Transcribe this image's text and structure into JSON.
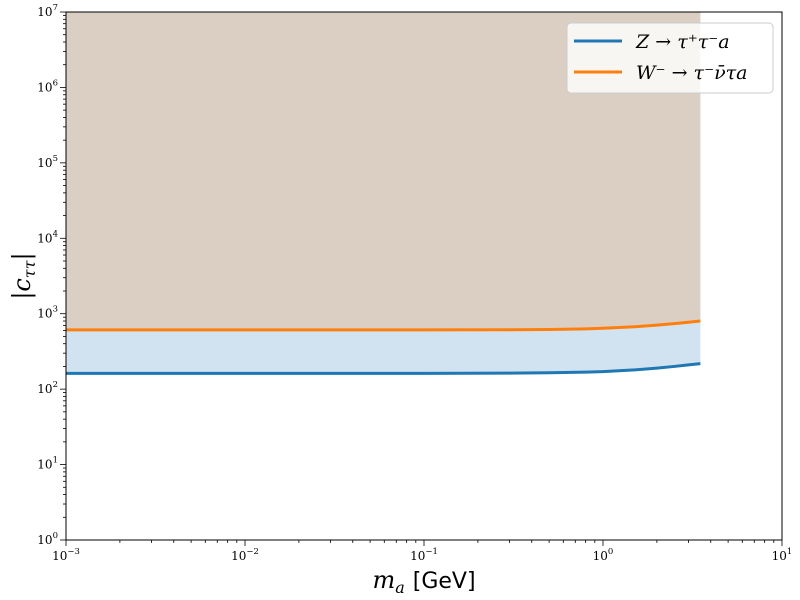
{
  "chart_data": {
    "type": "line",
    "xscale": "log",
    "yscale": "log",
    "xlim": [
      0.001,
      10
    ],
    "ylim": [
      1,
      10000000
    ],
    "xlabel_var": "m",
    "xlabel_sub": "a",
    "xlabel_unit": "[GeV]",
    "ylabel_var": "|c",
    "ylabel_sub": "ττ",
    "ylabel_close": "|",
    "x_ticks": [
      {
        "base": "10",
        "exp": "−3"
      },
      {
        "base": "10",
        "exp": "−2"
      },
      {
        "base": "10",
        "exp": "−1"
      },
      {
        "base": "10",
        "exp": "0"
      },
      {
        "base": "10",
        "exp": "1"
      }
    ],
    "y_ticks": [
      {
        "base": "10",
        "exp": "0"
      },
      {
        "base": "10",
        "exp": "1"
      },
      {
        "base": "10",
        "exp": "2"
      },
      {
        "base": "10",
        "exp": "3"
      },
      {
        "base": "10",
        "exp": "4"
      },
      {
        "base": "10",
        "exp": "5"
      },
      {
        "base": "10",
        "exp": "6"
      },
      {
        "base": "10",
        "exp": "7"
      }
    ],
    "legend_position": "top-right",
    "series": [
      {
        "name": "Z → τ⁺τ⁻a",
        "color": "#1f77b4",
        "fill_color": "#d1e3f0",
        "x": [
          0.001,
          0.01,
          0.1,
          0.3,
          0.5,
          0.8,
          1.0,
          1.5,
          2.0,
          2.5,
          3.0,
          3.5
        ],
        "y": [
          162,
          162,
          162,
          163,
          165,
          168,
          171,
          180,
          190,
          200,
          210,
          218
        ]
      },
      {
        "name": "W⁻ → τ⁻ν̄τa",
        "color": "#ff7f0e",
        "fill_color": "#dbcfc4",
        "x": [
          0.001,
          0.01,
          0.1,
          0.3,
          0.5,
          0.8,
          1.0,
          1.5,
          2.0,
          2.5,
          3.0,
          3.5
        ],
        "y": [
          610,
          610,
          610,
          612,
          618,
          630,
          642,
          672,
          705,
          738,
          770,
          800
        ]
      }
    ]
  }
}
